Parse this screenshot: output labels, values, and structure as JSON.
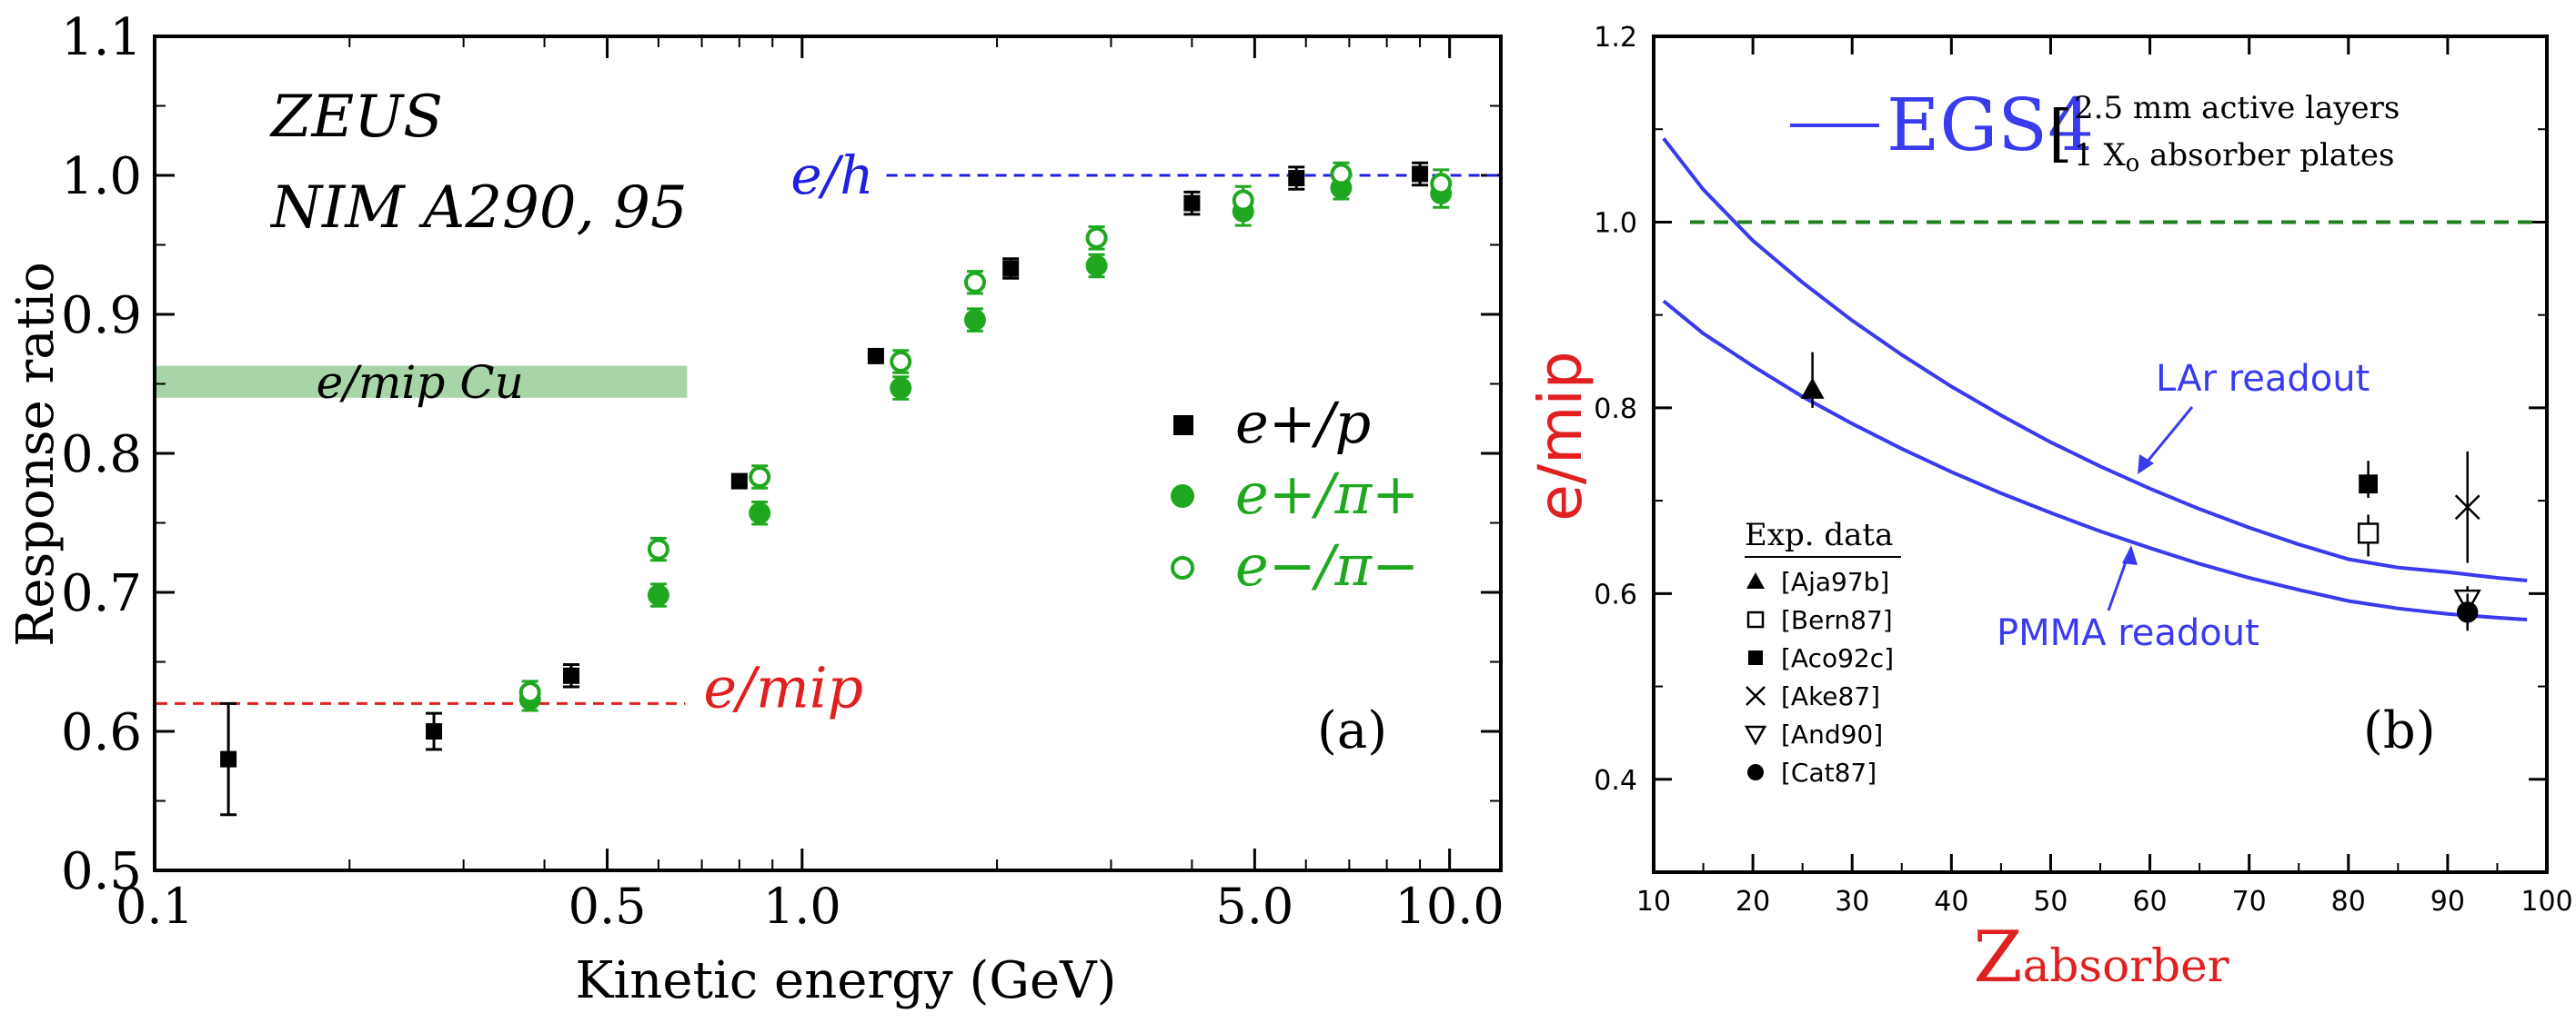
{
  "colors": {
    "black": "#000000",
    "green": "#1fa81f",
    "green_band": "#a8d5a8",
    "blue": "#2020e0",
    "red": "#e02020",
    "dark_green_dash": "#208020",
    "curve_blue": "#3a3aee"
  },
  "chart_data": [
    {
      "type": "scatter",
      "panel": "(a)",
      "xscale": "log",
      "xlim": [
        0.1,
        12
      ],
      "ylim": [
        0.5,
        1.1
      ],
      "xlabel": "Kinetic energy (GeV)",
      "ylabel": "Response ratio",
      "xticks": [
        0.1,
        0.5,
        1.0,
        5.0,
        10.0
      ],
      "xtick_labels": [
        "0.1",
        "0.5",
        "1.0",
        "5.0",
        "10.0"
      ],
      "yticks": [
        0.5,
        0.6,
        0.7,
        0.8,
        0.9,
        1.0,
        1.1
      ],
      "ytick_labels": [
        "0.5",
        "0.6",
        "0.7",
        "0.8",
        "0.9",
        "1.0",
        "1.1"
      ],
      "annotation_lines": [
        "ZEUS",
        "NIM A290, 95"
      ],
      "legend_position": "right",
      "series": [
        {
          "name": "e+/p",
          "marker": "filled-square",
          "color": "#000000",
          "points": [
            {
              "x": 0.13,
              "y": 0.58,
              "err": 0.04
            },
            {
              "x": 0.27,
              "y": 0.6,
              "err": 0.013
            },
            {
              "x": 0.44,
              "y": 0.64,
              "err": 0.008
            },
            {
              "x": 0.8,
              "y": 0.78,
              "err": 0
            },
            {
              "x": 1.3,
              "y": 0.87,
              "err": 0
            },
            {
              "x": 2.1,
              "y": 0.933,
              "err": 0.007
            },
            {
              "x": 4.0,
              "y": 0.98,
              "err": 0.008
            },
            {
              "x": 5.8,
              "y": 0.998,
              "err": 0.008
            },
            {
              "x": 9.0,
              "y": 1.001,
              "err": 0.008
            }
          ]
        },
        {
          "name": "e+/π+",
          "marker": "filled-circle",
          "color": "#1fa81f",
          "points": [
            {
              "x": 0.38,
              "y": 0.623,
              "err": 0.008
            },
            {
              "x": 0.6,
              "y": 0.698,
              "err": 0.008
            },
            {
              "x": 0.86,
              "y": 0.757,
              "err": 0.008
            },
            {
              "x": 1.42,
              "y": 0.847,
              "err": 0.008
            },
            {
              "x": 1.85,
              "y": 0.896,
              "err": 0.008
            },
            {
              "x": 2.85,
              "y": 0.935,
              "err": 0.008
            },
            {
              "x": 4.8,
              "y": 0.974,
              "err": 0.01
            },
            {
              "x": 6.8,
              "y": 0.991,
              "err": 0.008
            },
            {
              "x": 9.7,
              "y": 0.987,
              "err": 0.01
            }
          ]
        },
        {
          "name": "e−/π−",
          "marker": "open-circle",
          "color": "#1fa81f",
          "points": [
            {
              "x": 0.38,
              "y": 0.628,
              "err": 0.008
            },
            {
              "x": 0.6,
              "y": 0.731,
              "err": 0.008
            },
            {
              "x": 0.86,
              "y": 0.783,
              "err": 0.008
            },
            {
              "x": 1.42,
              "y": 0.866,
              "err": 0.008
            },
            {
              "x": 1.85,
              "y": 0.923,
              "err": 0.008
            },
            {
              "x": 2.85,
              "y": 0.955,
              "err": 0.008
            },
            {
              "x": 4.8,
              "y": 0.982,
              "err": 0.01
            },
            {
              "x": 6.8,
              "y": 1.001,
              "err": 0.008
            },
            {
              "x": 9.7,
              "y": 0.994,
              "err": 0.01
            }
          ]
        }
      ],
      "reference_lines": [
        {
          "label": "e/h",
          "y": 1.0,
          "x_from": 1.35,
          "x_to": 12,
          "color": "#2020e0"
        },
        {
          "label": "e/mip",
          "y": 0.62,
          "x_from": 0.1,
          "x_to": 0.66,
          "color": "#e02020"
        }
      ],
      "band": {
        "label": "e/mip Cu",
        "y_from": 0.84,
        "y_to": 0.863,
        "x_from": 0.1,
        "x_to": 0.66,
        "color": "#a8d5a8"
      }
    },
    {
      "type": "line",
      "panel": "(b)",
      "xlim": [
        10,
        100
      ],
      "ylim": [
        0.3,
        1.2
      ],
      "xlabel_main": "Z",
      "xlabel_sub": "absorber",
      "ylabel": "e/mip",
      "xticks": [
        10,
        20,
        30,
        40,
        50,
        60,
        70,
        80,
        90,
        100
      ],
      "xtick_labels": [
        "10",
        "20",
        "30",
        "40",
        "50",
        "60",
        "70",
        "80",
        "90",
        "100"
      ],
      "yticks": [
        0.4,
        0.6,
        0.8,
        1.0,
        1.2
      ],
      "ytick_labels": [
        "0.4",
        "0.6",
        "0.8",
        "1.0",
        "1.2"
      ],
      "model": {
        "name": "EGS4",
        "notes": [
          "2.5 mm active layers",
          "1 X",
          "o",
          " absorber plates"
        ]
      },
      "series": [
        {
          "name": "LAr readout",
          "color": "#3a3aee",
          "x": [
            11,
            15,
            20,
            25,
            30,
            35,
            40,
            45,
            50,
            55,
            60,
            65,
            70,
            75,
            80,
            85,
            90,
            95,
            98
          ],
          "y": [
            1.09,
            1.035,
            0.98,
            0.935,
            0.894,
            0.857,
            0.823,
            0.792,
            0.763,
            0.737,
            0.713,
            0.691,
            0.671,
            0.653,
            0.637,
            0.628,
            0.623,
            0.617,
            0.614
          ]
        },
        {
          "name": "PMMA readout",
          "color": "#3a3aee",
          "x": [
            11,
            15,
            20,
            25,
            30,
            35,
            40,
            45,
            50,
            55,
            60,
            65,
            70,
            75,
            80,
            85,
            90,
            95,
            98
          ],
          "y": [
            0.915,
            0.88,
            0.845,
            0.812,
            0.783,
            0.756,
            0.731,
            0.708,
            0.687,
            0.667,
            0.649,
            0.632,
            0.617,
            0.604,
            0.592,
            0.584,
            0.578,
            0.574,
            0.572
          ]
        }
      ],
      "reference_line": {
        "y": 1.0,
        "color": "#208020"
      },
      "exp_data_title": "Exp. data",
      "exp_data": [
        {
          "ref": "[Aja97b]",
          "marker": "filled-triangle",
          "x": 26,
          "y": 0.82,
          "err_low": 0.02,
          "err_high": 0.04
        },
        {
          "ref": "[Bern87]",
          "marker": "open-square",
          "x": 82,
          "y": 0.665,
          "err_low": 0.025,
          "err_high": 0.02
        },
        {
          "ref": "[Aco92c]",
          "marker": "filled-square",
          "x": 82,
          "y": 0.718,
          "err_low": 0.015,
          "err_high": 0.025
        },
        {
          "ref": "[Ake87]",
          "marker": "cross",
          "x": 92,
          "y": 0.693,
          "err_low": 0.06,
          "err_high": 0.06
        },
        {
          "ref": "[And90]",
          "marker": "open-triangle-down",
          "x": 92,
          "y": 0.593,
          "err_low": 0.015,
          "err_high": 0.015
        },
        {
          "ref": "[Cat87]",
          "marker": "filled-circle",
          "x": 92,
          "y": 0.58,
          "err_low": 0.02,
          "err_high": 0.02
        }
      ]
    }
  ]
}
